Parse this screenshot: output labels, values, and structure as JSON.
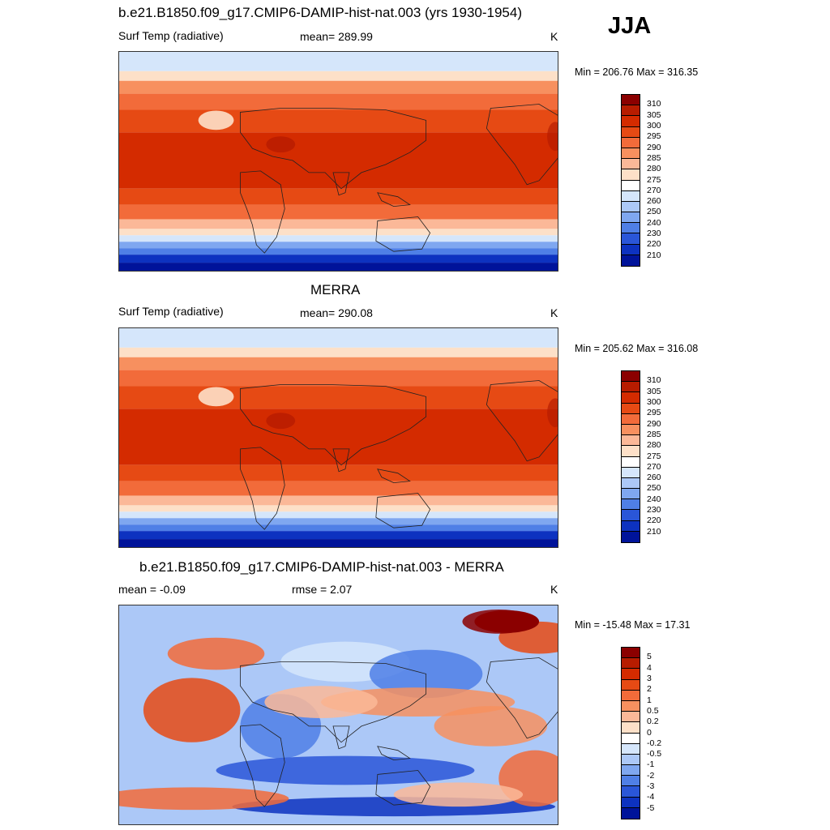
{
  "season": "JJA",
  "panels": [
    {
      "title": "b.e21.B1850.f09_g17.CMIP6-DAMIP-hist-nat.003 (yrs 1930-1954)",
      "left_label": "Surf Temp (radiative)",
      "center_label": "mean= 289.99",
      "units": "K",
      "minmax": "Min = 206.76 Max = 316.35",
      "kind": "abs"
    },
    {
      "title": "MERRA",
      "left_label": "Surf Temp (radiative)",
      "center_label": "mean= 290.08",
      "units": "K",
      "minmax": "Min = 205.62 Max = 316.08",
      "kind": "abs"
    },
    {
      "title": "b.e21.B1850.f09_g17.CMIP6-DAMIP-hist-nat.003 - MERRA",
      "left_label": "mean =  -0.09",
      "center_label": "rmse =   2.07",
      "units": "K",
      "minmax": "Min = -15.48 Max =  17.31",
      "kind": "diff"
    }
  ],
  "colorbars": {
    "abs": {
      "labels": [
        "310",
        "305",
        "300",
        "295",
        "290",
        "285",
        "280",
        "275",
        "270",
        "260",
        "250",
        "240",
        "230",
        "220",
        "210"
      ],
      "colors": [
        "#8b0000",
        "#b71c00",
        "#d42b00",
        "#e64a14",
        "#f26b3a",
        "#f7905f",
        "#fbb898",
        "#fde0c8",
        "#ffffff",
        "#d5e6fb",
        "#acc8f7",
        "#7fa7f0",
        "#4f7fe6",
        "#2a56d8",
        "#0d32c0",
        "#00139a"
      ]
    },
    "diff": {
      "labels": [
        "5",
        "4",
        "3",
        "2",
        "1",
        "0.5",
        "0.2",
        "0",
        "-0.2",
        "-0.5",
        "-1",
        "-2",
        "-3",
        "-4",
        "-5"
      ],
      "colors": [
        "#8b0000",
        "#b71c00",
        "#d42b00",
        "#e64a14",
        "#f26b3a",
        "#f7905f",
        "#fbb898",
        "#fde0c8",
        "#ffffff",
        "#d5e6fb",
        "#acc8f7",
        "#7fa7f0",
        "#4f7fe6",
        "#2a56d8",
        "#0d32c0",
        "#00139a"
      ]
    }
  }
}
